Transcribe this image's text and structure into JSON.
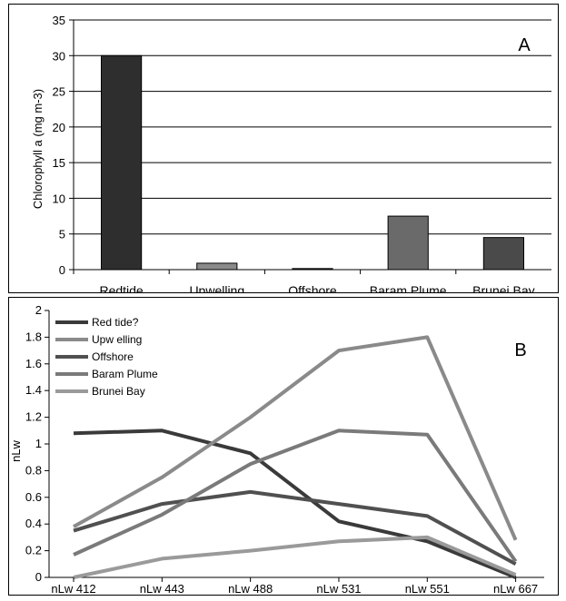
{
  "chart_data": [
    {
      "type": "bar",
      "panel_label": "A",
      "ylabel": "Chlorophyll a  (mg m-3)",
      "xlabel": "",
      "ylim": [
        0,
        35
      ],
      "yticks": [
        "0",
        "5",
        "10",
        "15",
        "20",
        "25",
        "30",
        "35"
      ],
      "categories": [
        "Redtide",
        "Upwelling",
        "Offshore",
        "Baram Plume",
        "Brunei Bay"
      ],
      "values": [
        30,
        0.9,
        0.15,
        7.5,
        4.5
      ],
      "bar_colors": [
        "#2e2e2e",
        "#8a8a8a",
        "#2e2e2e",
        "#6a6a6a",
        "#4a4a4a"
      ],
      "grid": true
    },
    {
      "type": "line",
      "panel_label": "B",
      "ylabel": "nLw",
      "xlabel": "",
      "ylim": [
        0,
        2
      ],
      "yticks": [
        "0",
        "0.2",
        "0.4",
        "0.6",
        "0.8",
        "1",
        "1.2",
        "1.4",
        "1.6",
        "1.8",
        "2"
      ],
      "x": [
        "nLw 412",
        "nLw 443",
        "nLw 488",
        "nLw 531",
        "nLw 551",
        "nLw 667"
      ],
      "legend_position": "top-left",
      "series": [
        {
          "name": "Red tide?",
          "values": [
            1.08,
            1.1,
            0.93,
            0.42,
            0.27,
            0.0
          ],
          "color": "#3a3a3a"
        },
        {
          "name": "Upw elling",
          "values": [
            0.38,
            0.75,
            1.2,
            1.7,
            1.8,
            0.28
          ],
          "color": "#8a8a8a"
        },
        {
          "name": "Offshore",
          "values": [
            0.35,
            0.55,
            0.64,
            0.55,
            0.46,
            0.1
          ],
          "color": "#505050"
        },
        {
          "name": "Baram Plume",
          "values": [
            0.17,
            0.47,
            0.85,
            1.1,
            1.07,
            0.12
          ],
          "color": "#7a7a7a"
        },
        {
          "name": "Brunei Bay",
          "values": [
            0.0,
            0.14,
            0.2,
            0.27,
            0.3,
            0.02
          ],
          "color": "#9a9a9a"
        }
      ]
    }
  ]
}
